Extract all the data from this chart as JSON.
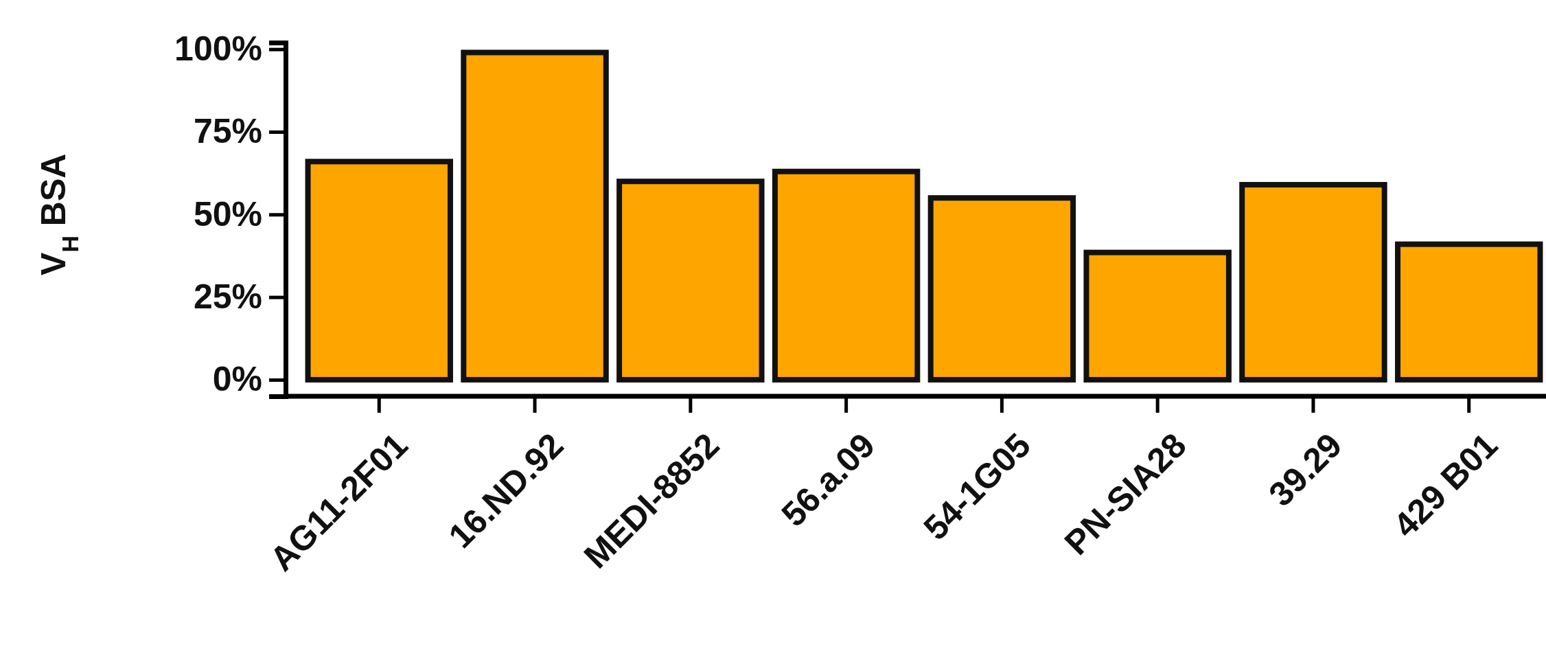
{
  "chart_data": {
    "type": "bar",
    "ylabel": "V$_{H}$ BSA",
    "categories": [
      "AG11-2F01",
      "16.ND.92",
      "MEDI-8852",
      "56.a.09",
      "54-1G05",
      "PN-SIA28",
      "39.29",
      "429 B01"
    ],
    "values": [
      66,
      99,
      60,
      63,
      55,
      38.5,
      59,
      41
    ],
    "color": "#ffa500",
    "ylim": [
      -5,
      102
    ],
    "yticks": [
      {
        "value": 0,
        "label": "0%"
      },
      {
        "value": 25,
        "label": "25%"
      },
      {
        "value": 50,
        "label": "50%"
      },
      {
        "value": 75,
        "label": "75%"
      },
      {
        "value": 100,
        "label": "100%"
      }
    ]
  }
}
